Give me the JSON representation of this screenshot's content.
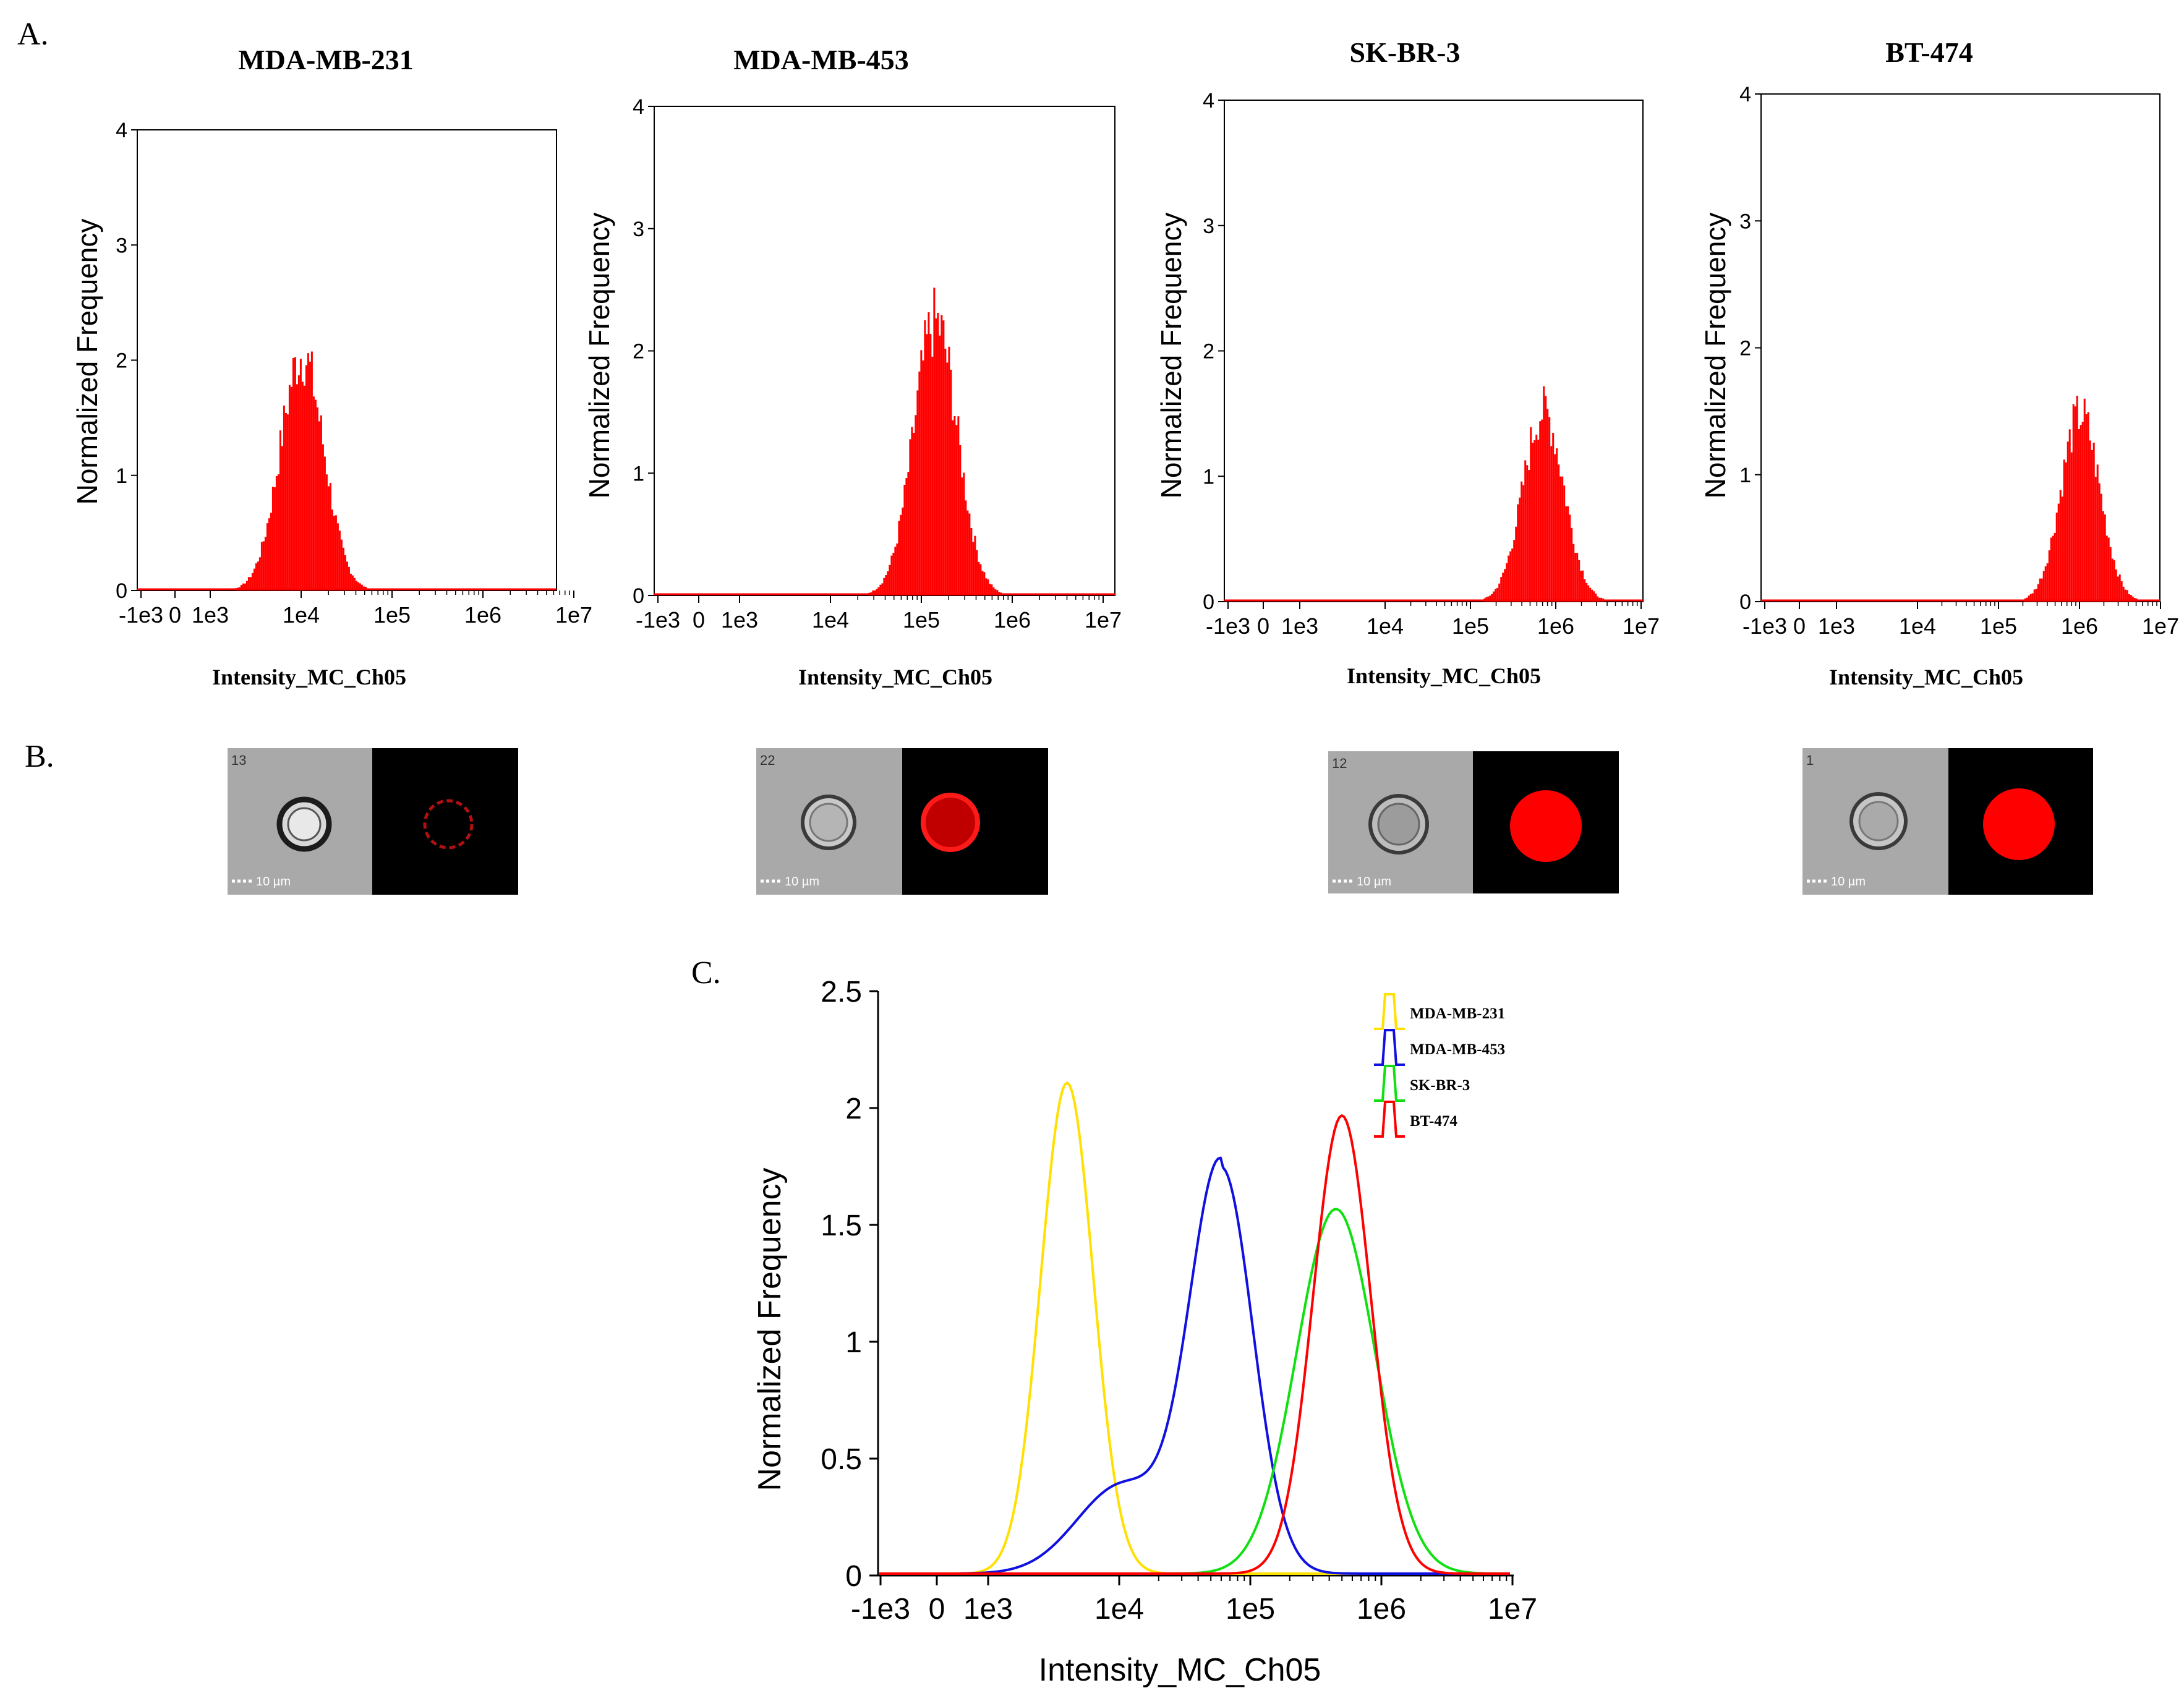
{
  "panels": {
    "a": "A.",
    "b": "B.",
    "c": "C."
  },
  "colors": {
    "hist": "#ff0000",
    "yellow": "#ffe000",
    "blue": "#1010e0",
    "green": "#10e010",
    "red": "#ff0000"
  },
  "chart_data": [
    {
      "type": "bar",
      "id": "hist-mda-mb-231",
      "title": "MDA-MB-231",
      "xlabel": "Intensity_MC_Ch05",
      "ylabel": "Normalized Frequency",
      "xticks": [
        "-1e3",
        "0",
        "1e3",
        "1e4",
        "1e5",
        "1e6",
        "1e7"
      ],
      "yticks": [
        "0",
        "1",
        "2",
        "3",
        "4"
      ],
      "ylim": [
        0,
        4
      ],
      "peak_x": "1e4",
      "peak_y": 2.15
    },
    {
      "type": "bar",
      "id": "hist-mda-mb-453",
      "title": "MDA-MB-453",
      "xlabel": "Intensity_MC_Ch05",
      "ylabel": "Normalized Frequency",
      "xticks": [
        "-1e3",
        "0",
        "1e3",
        "1e4",
        "1e5",
        "1e6",
        "1e7"
      ],
      "yticks": [
        "0",
        "1",
        "2",
        "3",
        "4"
      ],
      "ylim": [
        0,
        4
      ],
      "peak_x": "1.4e5",
      "peak_y": 2.35
    },
    {
      "type": "bar",
      "id": "hist-sk-br-3",
      "title": "SK-BR-3",
      "xlabel": "Intensity_MC_Ch05",
      "ylabel": "Normalized Frequency",
      "xticks": [
        "-1e3",
        "0",
        "1e3",
        "1e4",
        "1e5",
        "1e6",
        "1e7"
      ],
      "yticks": [
        "0",
        "1",
        "2",
        "3",
        "4"
      ],
      "ylim": [
        0,
        4
      ],
      "peak_x": "7e5",
      "peak_y": 1.6
    },
    {
      "type": "bar",
      "id": "hist-bt-474",
      "title": "BT-474",
      "xlabel": "Intensity_MC_Ch05",
      "ylabel": "Normalized Frequency",
      "xticks": [
        "-1e3",
        "0",
        "1e3",
        "1e4",
        "1e5",
        "1e6",
        "1e7"
      ],
      "yticks": [
        "0",
        "1",
        "2",
        "3",
        "4"
      ],
      "ylim": [
        0,
        4
      ],
      "peak_x": "1e6",
      "peak_y": 1.55
    },
    {
      "type": "line",
      "id": "overlay",
      "xlabel": "Intensity_MC_Ch05",
      "ylabel": "Normalized Frequency",
      "xticks": [
        "-1e3",
        "0",
        "1e3",
        "1e4",
        "1e5",
        "1e6",
        "1e7"
      ],
      "yticks": [
        "0",
        "0.5",
        "1",
        "1.5",
        "2",
        "2.5"
      ],
      "ylim": [
        0,
        2.5
      ],
      "series": [
        {
          "name": "MDA-MB-231",
          "peak_x": "4e3",
          "peak_y": 2.1
        },
        {
          "name": "MDA-MB-453",
          "peak_x": "6e4",
          "peak_y": 1.74
        },
        {
          "name": "SK-BR-3",
          "peak_x": "4.5e5",
          "peak_y": 1.56
        },
        {
          "name": "BT-474",
          "peak_x": "5e5",
          "peak_y": 1.96
        }
      ],
      "legend_position": "top-right"
    }
  ],
  "cells": [
    {
      "index": "13",
      "scale": "10 µm"
    },
    {
      "index": "22",
      "scale": "10 µm"
    },
    {
      "index": "12",
      "scale": "10 µm"
    },
    {
      "index": "1",
      "scale": "10 µm"
    }
  ]
}
